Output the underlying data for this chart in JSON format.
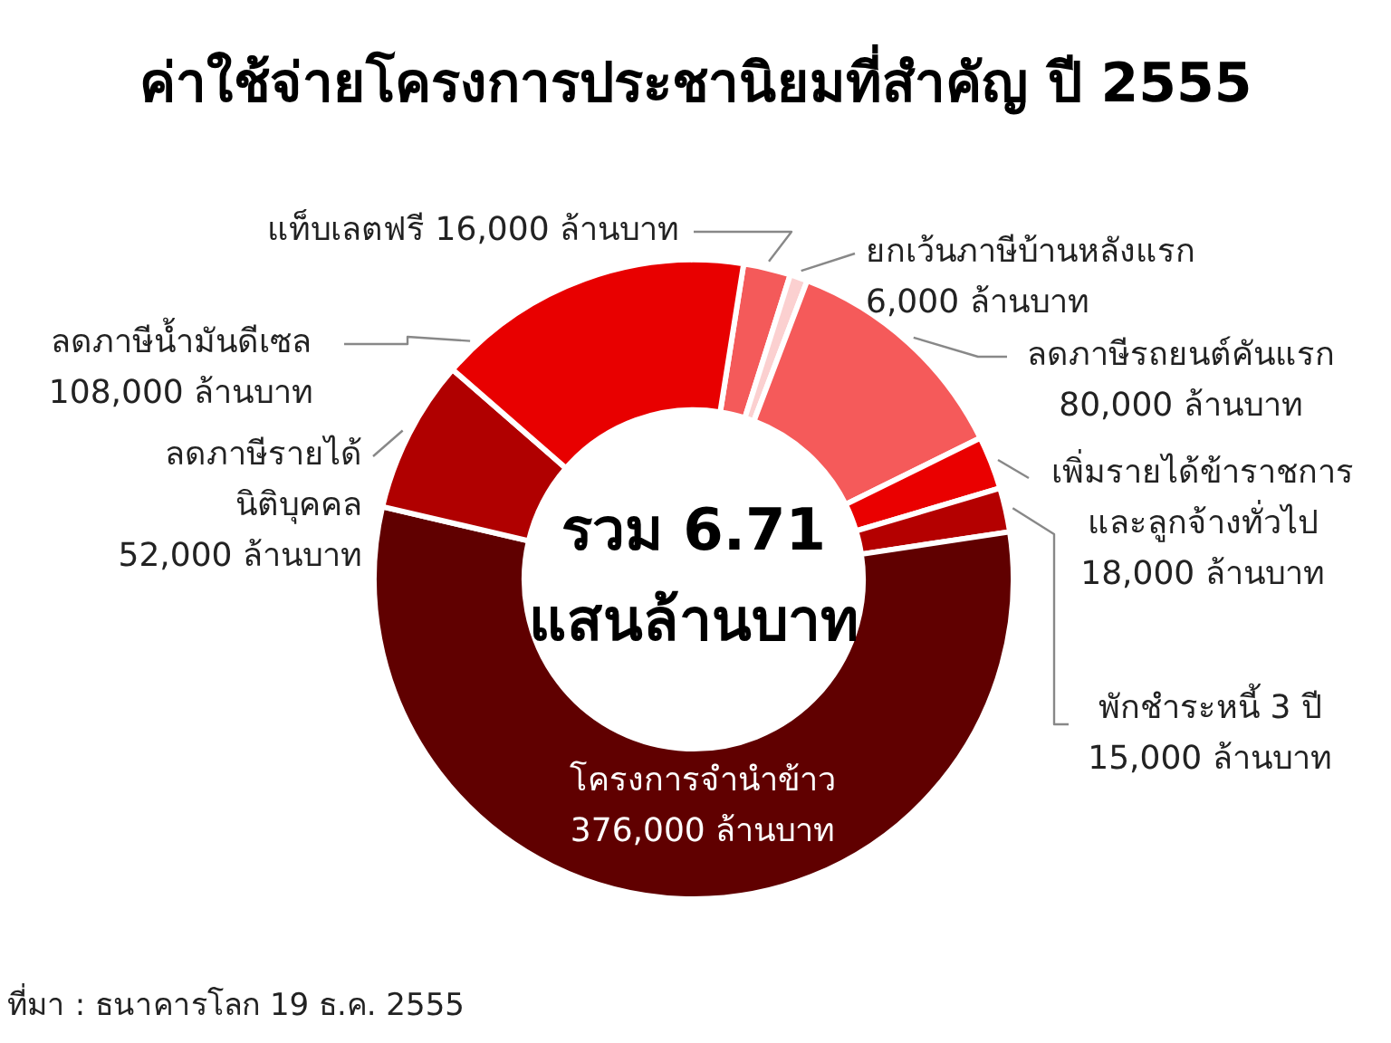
{
  "chart_data": {
    "type": "donut",
    "title": "ค่าใช้จ่ายโครงการประชานิยมที่สำคัญ ปี 2555",
    "categories": [
      "แท็บเลตฟรี",
      "ยกเว้นภาษีบ้านหลังแรก",
      "ลดภาษีรถยนต์คันแรก",
      "เพิ่มรายได้ข้าราชการและลูกจ้างทั่วไป",
      "พักชำระหนี้ 3 ปี",
      "โครงการจำนำข้าว",
      "ลดภาษีรายได้นิติบุคคล",
      "ลดภาษีน้ำมันดีเซล"
    ],
    "values": [
      16000,
      6000,
      80000,
      18000,
      15000,
      376000,
      52000,
      108000
    ],
    "colors": [
      "#f45a5a",
      "#fbd0d0",
      "#f55a5a",
      "#ea0000",
      "#b40000",
      "#600000",
      "#b00000",
      "#e80000"
    ],
    "value_labels": [
      "16,000 ล้านบาท",
      "6,000 ล้านบาท",
      "80,000 ล้านบาท",
      "18,000 ล้านบาท",
      "15,000 ล้านบาท",
      "376,000 ล้านบาท",
      "52,000 ล้านบาท",
      "108,000 ล้านบาท"
    ],
    "annotations": [
      "รวม 6.71 แสนล้านบาท",
      "ที่มา : ธนาคารโลก 19 ธ.ค. 2555"
    ]
  }
}
